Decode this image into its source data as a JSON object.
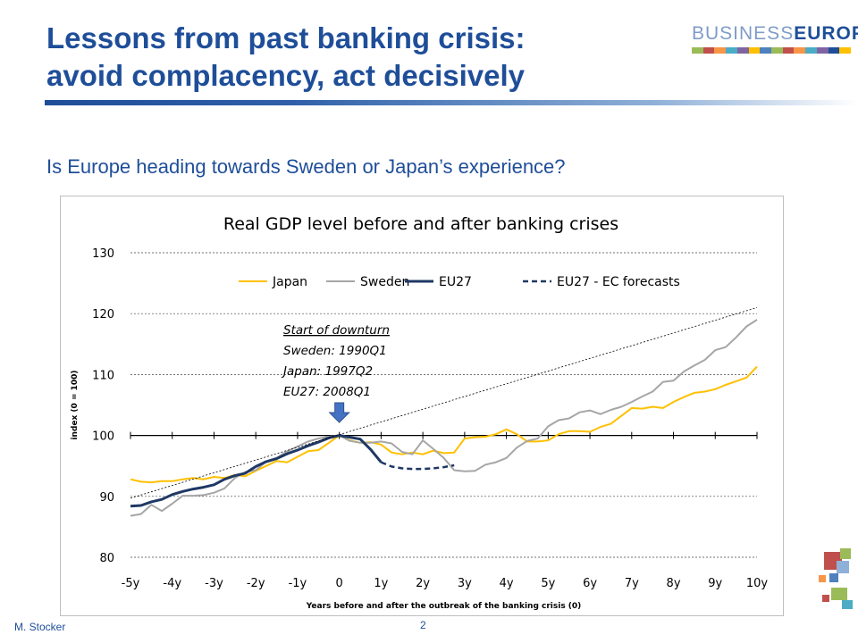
{
  "header": {
    "title_line1": "Lessons from past banking crisis:",
    "title_line2": "avoid complacency, act decisively",
    "brand_part1": "BUSINESS",
    "brand_part2": "EUROPE"
  },
  "subtitle": "Is Europe heading towards Sweden or Japan’s experience?",
  "footer": {
    "author": "M. Stocker",
    "page": "2"
  },
  "colors": {
    "title_blue": "#1f4e99",
    "japan": "#ffc000",
    "sweden": "#a6a6a6",
    "eu27": "#1f3864"
  },
  "chart_data": {
    "type": "line",
    "title": "Real GDP level before and after banking crises",
    "xlabel": "Years before and after the outbreak of the banking crisis (0)",
    "ylabel": "index (0 = 100)",
    "ylim": [
      80,
      130
    ],
    "xlim": [
      -5,
      10
    ],
    "yticks": [
      "80",
      "90",
      "100",
      "110",
      "120",
      "130"
    ],
    "xticks": [
      "-5y",
      "-4y",
      "-3y",
      "-2y",
      "-1y",
      "0",
      "1y",
      "2y",
      "3y",
      "4y",
      "5y",
      "6y",
      "7y",
      "8y",
      "9y",
      "10y"
    ],
    "grid": "horizontal dotted",
    "legend_position": "top",
    "annotation": {
      "lines": [
        "Start of downturn",
        "Sweden: 1990Q1",
        "Japan: 1997Q2",
        "EU27: 2008Q1"
      ],
      "arrow_at_x": 0
    },
    "series": [
      {
        "name": "Japan",
        "style": "solid",
        "color": "#ffc000",
        "x": [
          -5,
          -4.75,
          -4.5,
          -4.25,
          -4,
          -3.75,
          -3.5,
          -3.25,
          -3,
          -2.75,
          -2.5,
          -2.25,
          -2,
          -1.75,
          -1.5,
          -1.25,
          -1,
          -0.75,
          -0.5,
          -0.25,
          0,
          0.25,
          0.5,
          0.75,
          1,
          1.25,
          1.5,
          1.75,
          2,
          2.25,
          2.5,
          2.75,
          3,
          3.25,
          3.5,
          3.75,
          4,
          4.25,
          4.5,
          4.75,
          5,
          5.25,
          5.5,
          5.75,
          6,
          6.25,
          6.5,
          6.75,
          7,
          7.25,
          7.5,
          7.75,
          8,
          8.25,
          8.5,
          8.75,
          9,
          9.25,
          9.5,
          9.75,
          10
        ],
        "values": [
          92.8,
          92.4,
          92.3,
          92.5,
          92.5,
          92.8,
          93,
          92.8,
          93.2,
          93,
          93.5,
          93.3,
          94.2,
          95,
          95.8,
          95.6,
          96.5,
          97.4,
          97.6,
          98.8,
          100,
          99.2,
          98.8,
          98.9,
          98.5,
          97.2,
          96.9,
          97.2,
          96.9,
          97.5,
          97.1,
          97.2,
          99.5,
          99.7,
          99.8,
          100.2,
          101,
          100.2,
          99,
          99,
          99.2,
          100.2,
          100.7,
          100.7,
          100.6,
          101.4,
          101.9,
          103.2,
          104.5,
          104.4,
          104.7,
          104.5,
          105.5,
          106.3,
          107,
          107.2,
          107.6,
          108.3,
          108.9,
          109.5,
          111.3
        ]
      },
      {
        "name": "Sweden",
        "style": "solid",
        "color": "#a6a6a6",
        "x": [
          -5,
          -4.75,
          -4.5,
          -4.25,
          -4,
          -3.75,
          -3.5,
          -3.25,
          -3,
          -2.75,
          -2.5,
          -2.25,
          -2,
          -1.75,
          -1.5,
          -1.25,
          -1,
          -0.75,
          -0.5,
          -0.25,
          0,
          0.25,
          0.5,
          0.75,
          1,
          1.25,
          1.5,
          1.75,
          2,
          2.25,
          2.5,
          2.75,
          3,
          3.25,
          3.5,
          3.75,
          4,
          4.25,
          4.5,
          4.75,
          5,
          5.25,
          5.5,
          5.75,
          6,
          6.25,
          6.5,
          6.75,
          7,
          7.25,
          7.5,
          7.75,
          8,
          8.25,
          8.5,
          8.75,
          9,
          9.25,
          9.5,
          9.75,
          10
        ],
        "values": [
          86.8,
          87.1,
          88.6,
          87.6,
          88.8,
          90.1,
          90.1,
          90.2,
          90.6,
          91.3,
          93,
          94,
          94.3,
          95.7,
          96.3,
          97.4,
          98.2,
          99,
          99.5,
          99.8,
          100,
          99.1,
          98.8,
          98.8,
          99,
          98.7,
          97.3,
          96.9,
          99.2,
          97.8,
          96.3,
          94.3,
          94.1,
          94.2,
          95.2,
          95.6,
          96.3,
          98,
          99.1,
          99.5,
          101.5,
          102.5,
          102.8,
          103.8,
          104.1,
          103.5,
          104.2,
          104.7,
          105.5,
          106.4,
          107.2,
          108.8,
          109,
          110.5,
          111.5,
          112.4,
          114,
          114.5,
          116.1,
          117.9,
          119
        ]
      },
      {
        "name": "EU27",
        "style": "solid",
        "color": "#1f3864",
        "x": [
          -5,
          -4.75,
          -4.5,
          -4.25,
          -4,
          -3.75,
          -3.5,
          -3.25,
          -3,
          -2.75,
          -2.5,
          -2.25,
          -2,
          -1.75,
          -1.5,
          -1.25,
          -1,
          -0.75,
          -0.5,
          -0.25,
          0,
          0.25,
          0.5,
          0.75,
          1
        ],
        "values": [
          88.4,
          88.5,
          89.1,
          89.5,
          90.3,
          90.8,
          91.2,
          91.5,
          91.9,
          92.8,
          93.4,
          93.8,
          94.9,
          95.7,
          96.2,
          97,
          97.6,
          98.3,
          98.9,
          99.6,
          100,
          99.7,
          99.4,
          97.7,
          95.6
        ]
      },
      {
        "name": "EU27 - EC forecasts",
        "style": "dashed",
        "color": "#1f3864",
        "x": [
          1,
          1.25,
          1.5,
          1.75,
          2,
          2.25,
          2.5,
          2.75
        ],
        "values": [
          95.6,
          94.9,
          94.6,
          94.5,
          94.5,
          94.6,
          94.8,
          95.1
        ]
      },
      {
        "name": "",
        "style": "trend",
        "color": "#000000",
        "x": [
          -5,
          10
        ],
        "values": [
          89.7,
          121
        ]
      }
    ]
  }
}
